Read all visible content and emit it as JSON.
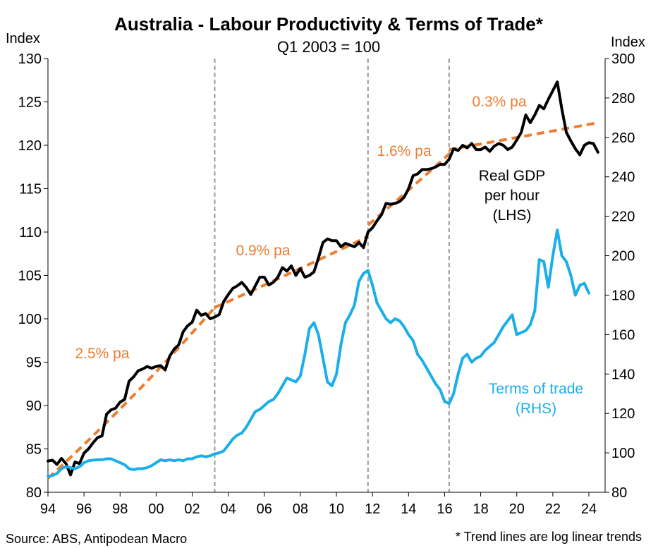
{
  "chart_data": {
    "type": "line",
    "title": "Australia - Labour Productivity & Terms of Trade*",
    "subtitle": "Q1 2003 = 100",
    "ylabel_left": "Index",
    "ylabel_right": "Index",
    "source": "Source: ABS, Antipodean Macro",
    "footnote": "* Trend lines are log linear trends",
    "x_ticks": [
      "94",
      "96",
      "98",
      "00",
      "02",
      "04",
      "06",
      "08",
      "10",
      "12",
      "14",
      "16",
      "18",
      "20",
      "22",
      "24"
    ],
    "x_tick_years": [
      1994,
      1996,
      1998,
      2000,
      2002,
      2004,
      2006,
      2008,
      2010,
      2012,
      2014,
      2016,
      2018,
      2020,
      2022,
      2024
    ],
    "xlim": [
      1994,
      2024.9
    ],
    "ylim_left": [
      80,
      130
    ],
    "yticks_left": [
      80,
      85,
      90,
      95,
      100,
      105,
      110,
      115,
      120,
      125,
      130
    ],
    "ylim_right": [
      80,
      300
    ],
    "yticks_right": [
      80,
      100,
      120,
      140,
      160,
      180,
      200,
      220,
      240,
      260,
      280,
      300
    ],
    "break_years": [
      2003.25,
      2011.75,
      2016.25
    ],
    "grid": false,
    "colors": {
      "gdp": "#000000",
      "tot": "#1aaeea",
      "trend": "#ed7d31",
      "breaks": "#999999"
    },
    "series": [
      {
        "name": "Real GDP per hour (LHS)",
        "axis": "left",
        "label_lines": [
          "Real GDP",
          "per hour",
          "(LHS)"
        ],
        "points": [
          [
            1994.0,
            83.6
          ],
          [
            1994.25,
            83.7
          ],
          [
            1994.5,
            83.2
          ],
          [
            1994.75,
            83.9
          ],
          [
            1995.0,
            83.3
          ],
          [
            1995.25,
            82.0
          ],
          [
            1995.5,
            83.5
          ],
          [
            1995.75,
            83.3
          ],
          [
            1996.0,
            84.5
          ],
          [
            1996.25,
            85.0
          ],
          [
            1996.5,
            85.7
          ],
          [
            1996.75,
            86.3
          ],
          [
            1997.0,
            86.5
          ],
          [
            1997.25,
            89.0
          ],
          [
            1997.5,
            89.5
          ],
          [
            1997.75,
            89.7
          ],
          [
            1998.0,
            90.4
          ],
          [
            1998.25,
            90.7
          ],
          [
            1998.5,
            92.8
          ],
          [
            1998.75,
            93.3
          ],
          [
            1999.0,
            94.0
          ],
          [
            1999.25,
            94.2
          ],
          [
            1999.5,
            94.5
          ],
          [
            1999.75,
            94.3
          ],
          [
            2000.0,
            94.5
          ],
          [
            2000.25,
            94.6
          ],
          [
            2000.5,
            94.1
          ],
          [
            2000.75,
            95.7
          ],
          [
            2001.0,
            96.5
          ],
          [
            2001.25,
            97.0
          ],
          [
            2001.5,
            98.5
          ],
          [
            2001.75,
            99.2
          ],
          [
            2002.0,
            99.6
          ],
          [
            2002.25,
            101.0
          ],
          [
            2002.5,
            100.4
          ],
          [
            2002.75,
            100.6
          ],
          [
            2003.0,
            100.0
          ],
          [
            2003.25,
            100.2
          ],
          [
            2003.5,
            100.5
          ],
          [
            2003.75,
            102.0
          ],
          [
            2004.0,
            102.8
          ],
          [
            2004.25,
            103.5
          ],
          [
            2004.5,
            103.8
          ],
          [
            2004.75,
            104.2
          ],
          [
            2005.0,
            103.6
          ],
          [
            2005.25,
            102.8
          ],
          [
            2005.5,
            103.8
          ],
          [
            2005.75,
            104.8
          ],
          [
            2006.0,
            104.8
          ],
          [
            2006.25,
            103.9
          ],
          [
            2006.5,
            104.2
          ],
          [
            2006.75,
            104.8
          ],
          [
            2007.0,
            105.9
          ],
          [
            2007.25,
            105.5
          ],
          [
            2007.5,
            106.1
          ],
          [
            2007.75,
            105.0
          ],
          [
            2008.0,
            105.8
          ],
          [
            2008.25,
            104.8
          ],
          [
            2008.5,
            105.0
          ],
          [
            2008.75,
            105.4
          ],
          [
            2009.0,
            107.0
          ],
          [
            2009.25,
            108.8
          ],
          [
            2009.5,
            109.2
          ],
          [
            2009.75,
            109.0
          ],
          [
            2010.0,
            109.0
          ],
          [
            2010.25,
            108.3
          ],
          [
            2010.5,
            108.7
          ],
          [
            2010.75,
            108.5
          ],
          [
            2011.0,
            108.3
          ],
          [
            2011.25,
            108.8
          ],
          [
            2011.5,
            108.2
          ],
          [
            2011.75,
            110.0
          ],
          [
            2012.0,
            110.5
          ],
          [
            2012.25,
            111.3
          ],
          [
            2012.5,
            112.0
          ],
          [
            2012.75,
            113.3
          ],
          [
            2013.0,
            113.2
          ],
          [
            2013.25,
            113.3
          ],
          [
            2013.5,
            113.5
          ],
          [
            2013.75,
            114.0
          ],
          [
            2014.0,
            115.0
          ],
          [
            2014.25,
            116.5
          ],
          [
            2014.5,
            116.7
          ],
          [
            2014.75,
            117.2
          ],
          [
            2015.0,
            117.2
          ],
          [
            2015.25,
            117.3
          ],
          [
            2015.5,
            117.5
          ],
          [
            2015.75,
            117.8
          ],
          [
            2016.0,
            117.8
          ],
          [
            2016.25,
            118.4
          ],
          [
            2016.5,
            119.6
          ],
          [
            2016.75,
            119.4
          ],
          [
            2017.0,
            120.0
          ],
          [
            2017.25,
            119.7
          ],
          [
            2017.5,
            120.2
          ],
          [
            2017.75,
            119.5
          ],
          [
            2018.0,
            119.5
          ],
          [
            2018.25,
            119.8
          ],
          [
            2018.5,
            119.3
          ],
          [
            2018.75,
            119.9
          ],
          [
            2019.0,
            120.2
          ],
          [
            2019.25,
            120.0
          ],
          [
            2019.5,
            119.5
          ],
          [
            2019.75,
            119.8
          ],
          [
            2020.0,
            120.6
          ],
          [
            2020.25,
            121.5
          ],
          [
            2020.5,
            123.5
          ],
          [
            2020.75,
            122.6
          ],
          [
            2021.0,
            123.5
          ],
          [
            2021.25,
            124.6
          ],
          [
            2021.5,
            124.2
          ],
          [
            2021.75,
            125.3
          ],
          [
            2022.0,
            126.3
          ],
          [
            2022.25,
            127.3
          ],
          [
            2022.5,
            124.2
          ],
          [
            2022.75,
            121.5
          ],
          [
            2023.0,
            120.5
          ],
          [
            2023.25,
            119.6
          ],
          [
            2023.5,
            118.9
          ],
          [
            2023.75,
            120.0
          ],
          [
            2024.0,
            120.3
          ],
          [
            2024.25,
            120.2
          ],
          [
            2024.5,
            119.2
          ]
        ]
      },
      {
        "name": "Terms of trade (RHS)",
        "axis": "right",
        "label_lines": [
          "Terms of trade",
          "(RHS)"
        ],
        "points": [
          [
            1994.0,
            88.0
          ],
          [
            1994.25,
            88.5
          ],
          [
            1994.5,
            89.5
          ],
          [
            1994.75,
            92.0
          ],
          [
            1995.0,
            93.0
          ],
          [
            1995.25,
            92.5
          ],
          [
            1995.5,
            92.0
          ],
          [
            1995.75,
            93.0
          ],
          [
            1996.0,
            95.0
          ],
          [
            1996.25,
            96.0
          ],
          [
            1996.5,
            96.3
          ],
          [
            1996.75,
            96.5
          ],
          [
            1997.0,
            96.5
          ],
          [
            1997.25,
            97.0
          ],
          [
            1997.5,
            97.0
          ],
          [
            1997.75,
            96.0
          ],
          [
            1998.0,
            95.0
          ],
          [
            1998.25,
            94.0
          ],
          [
            1998.5,
            92.0
          ],
          [
            1998.75,
            91.5
          ],
          [
            1999.0,
            92.0
          ],
          [
            1999.25,
            92.0
          ],
          [
            1999.5,
            92.5
          ],
          [
            1999.75,
            93.5
          ],
          [
            2000.0,
            95.0
          ],
          [
            2000.25,
            96.5
          ],
          [
            2000.5,
            96.0
          ],
          [
            2000.75,
            96.5
          ],
          [
            2001.0,
            96.0
          ],
          [
            2001.25,
            96.5
          ],
          [
            2001.5,
            96.0
          ],
          [
            2001.75,
            97.0
          ],
          [
            2002.0,
            97.0
          ],
          [
            2002.25,
            98.0
          ],
          [
            2002.5,
            98.5
          ],
          [
            2002.75,
            98.0
          ],
          [
            2003.0,
            98.5
          ],
          [
            2003.25,
            99.5
          ],
          [
            2003.5,
            100.0
          ],
          [
            2003.75,
            101.0
          ],
          [
            2004.0,
            104.0
          ],
          [
            2004.25,
            107.0
          ],
          [
            2004.5,
            109.0
          ],
          [
            2004.75,
            110.0
          ],
          [
            2005.0,
            113.0
          ],
          [
            2005.25,
            117.0
          ],
          [
            2005.5,
            121.0
          ],
          [
            2005.75,
            122.0
          ],
          [
            2006.0,
            124.0
          ],
          [
            2006.25,
            126.0
          ],
          [
            2006.5,
            127.0
          ],
          [
            2006.75,
            130.0
          ],
          [
            2007.0,
            134.0
          ],
          [
            2007.25,
            138.0
          ],
          [
            2007.5,
            137.0
          ],
          [
            2007.75,
            136.0
          ],
          [
            2008.0,
            139.0
          ],
          [
            2008.25,
            150.0
          ],
          [
            2008.5,
            163.0
          ],
          [
            2008.75,
            166.0
          ],
          [
            2009.0,
            160.0
          ],
          [
            2009.25,
            148.0
          ],
          [
            2009.5,
            136.0
          ],
          [
            2009.75,
            134.0
          ],
          [
            2010.0,
            140.0
          ],
          [
            2010.25,
            155.0
          ],
          [
            2010.5,
            166.0
          ],
          [
            2010.75,
            170.0
          ],
          [
            2011.0,
            175.0
          ],
          [
            2011.25,
            187.0
          ],
          [
            2011.5,
            191.0
          ],
          [
            2011.75,
            192.5
          ],
          [
            2012.0,
            185.0
          ],
          [
            2012.25,
            176.0
          ],
          [
            2012.5,
            172.0
          ],
          [
            2012.75,
            168.0
          ],
          [
            2013.0,
            166.0
          ],
          [
            2013.25,
            168.0
          ],
          [
            2013.5,
            167.0
          ],
          [
            2013.75,
            164.0
          ],
          [
            2014.0,
            160.0
          ],
          [
            2014.25,
            157.0
          ],
          [
            2014.5,
            150.0
          ],
          [
            2014.75,
            147.0
          ],
          [
            2015.0,
            143.0
          ],
          [
            2015.25,
            139.0
          ],
          [
            2015.5,
            135.0
          ],
          [
            2015.75,
            132.0
          ],
          [
            2016.0,
            126.0
          ],
          [
            2016.25,
            125.0
          ],
          [
            2016.5,
            130.0
          ],
          [
            2016.75,
            140.0
          ],
          [
            2017.0,
            148.0
          ],
          [
            2017.25,
            150.0
          ],
          [
            2017.5,
            146.0
          ],
          [
            2017.75,
            148.0
          ],
          [
            2018.0,
            149.0
          ],
          [
            2018.25,
            152.0
          ],
          [
            2018.5,
            154.0
          ],
          [
            2018.75,
            156.0
          ],
          [
            2019.0,
            160.0
          ],
          [
            2019.25,
            164.0
          ],
          [
            2019.5,
            167.0
          ],
          [
            2019.75,
            170.0
          ],
          [
            2020.0,
            160.0
          ],
          [
            2020.25,
            161.0
          ],
          [
            2020.5,
            162.0
          ],
          [
            2020.75,
            165.0
          ],
          [
            2021.0,
            172.0
          ],
          [
            2021.25,
            198.0
          ],
          [
            2021.5,
            197.0
          ],
          [
            2021.75,
            184.0
          ],
          [
            2022.0,
            200.0
          ],
          [
            2022.25,
            213.0
          ],
          [
            2022.5,
            200.0
          ],
          [
            2022.75,
            197.0
          ],
          [
            2023.0,
            190.0
          ],
          [
            2023.25,
            180.0
          ],
          [
            2023.5,
            185.0
          ],
          [
            2023.75,
            186.0
          ],
          [
            2024.0,
            181.0
          ]
        ]
      }
    ],
    "trends": [
      {
        "label": "2.5% pa",
        "x_start": 1994.0,
        "x_end": 2003.25,
        "y_start": 81.6,
        "y_end": 101.3
      },
      {
        "label": "0.9% pa",
        "x_start": 2003.25,
        "x_end": 2011.75,
        "y_start": 101.3,
        "y_end": 109.5
      },
      {
        "label": "1.6% pa",
        "x_start": 2011.75,
        "x_end": 2016.25,
        "y_start": 110.8,
        "y_end": 119.0
      },
      {
        "label": "0.3% pa",
        "x_start": 2016.25,
        "x_end": 2024.5,
        "y_start": 119.5,
        "y_end": 122.6
      }
    ]
  }
}
